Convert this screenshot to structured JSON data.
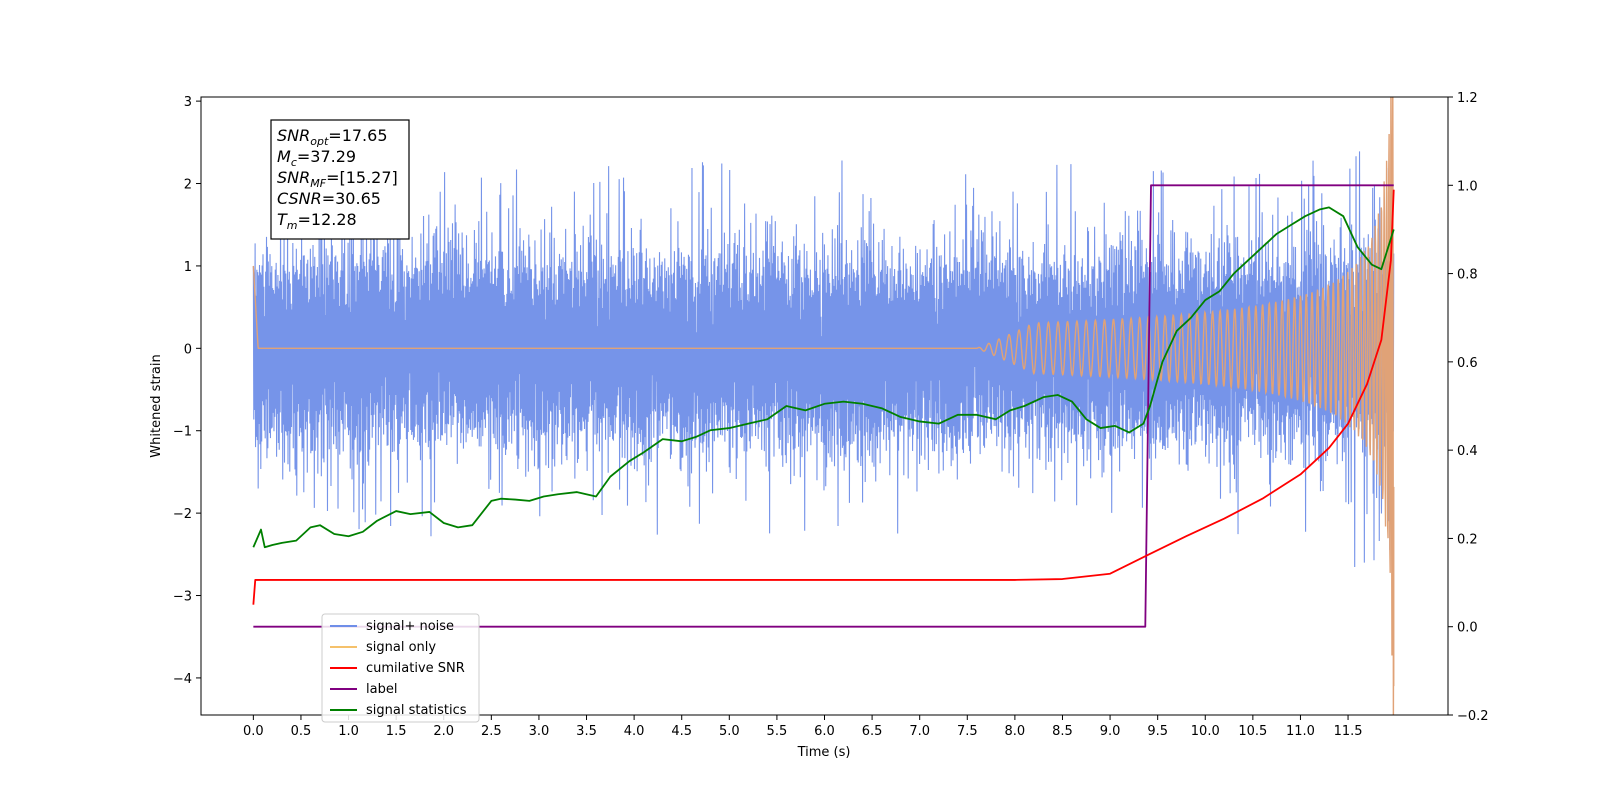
{
  "chart_data": {
    "type": "line",
    "xlabel": "Time (s)",
    "ylabel": "Whitened strain",
    "xlim": [
      -0.55,
      12.55
    ],
    "ylim": [
      -4.45,
      3.05
    ],
    "y2lim": [
      -0.2,
      1.2
    ],
    "x_ticks": [
      "0.0",
      "0.5",
      "1.0",
      "1.5",
      "2.0",
      "2.5",
      "3.0",
      "3.5",
      "4.0",
      "4.5",
      "5.0",
      "5.5",
      "6.0",
      "6.5",
      "7.0",
      "7.5",
      "8.0",
      "8.5",
      "9.0",
      "9.5",
      "10.0",
      "10.5",
      "11.0",
      "11.5"
    ],
    "y_ticks": [
      "3",
      "2",
      "1",
      "0",
      "−1",
      "−2",
      "−3",
      "−4"
    ],
    "y2_ticks": [
      "1.2",
      "1.0",
      "0.8",
      "0.6",
      "0.4",
      "0.2",
      "0.0",
      "−0.2"
    ],
    "annotation": [
      {
        "main": "SNR",
        "sub": "opt",
        "value": "=17.65"
      },
      {
        "main": "M",
        "sub": "c",
        "value": "=37.29"
      },
      {
        "main": "SNR",
        "sub": "MF",
        "value": "=[15.27]"
      },
      {
        "main": "CSNR",
        "sub": "",
        "value": "=30.65"
      },
      {
        "main": "T",
        "sub": "m",
        "value": "=12.28"
      }
    ],
    "legend": {
      "placement": "lower-left",
      "entries": [
        {
          "label": "signal+ noise",
          "color": "#6f8ee8"
        },
        {
          "label": "signal only",
          "color": "#f5c16b"
        },
        {
          "label": "cumilative SNR",
          "color": "#ff0000"
        },
        {
          "label": "label",
          "color": "#800080"
        },
        {
          "label": "signal statistics",
          "color": "#008000"
        }
      ]
    },
    "series": [
      {
        "name": "signal+ noise",
        "axis": "left",
        "style": "noise band, amplitude about ±1.3 with spikes to ±2.2, reaching 2.7 near the end",
        "t_start": 0.0,
        "t_end": 11.98,
        "band_amplitude": 1.3
      },
      {
        "name": "signal only",
        "axis": "left",
        "style": "chirp with growing amplitude, flat near 0 until about 8.0 s, final dip to −4.1",
        "t_start": 0.0,
        "t_end": 11.98,
        "end_value": -4.1
      },
      {
        "name": "cumilative SNR",
        "axis": "right",
        "x": [
          0.0,
          0.02,
          1.0,
          2.0,
          3.0,
          4.0,
          5.0,
          6.0,
          7.0,
          8.0,
          8.5,
          9.0,
          9.4,
          9.8,
          10.2,
          10.6,
          11.0,
          11.3,
          11.5,
          11.7,
          11.85,
          11.95,
          11.98
        ],
        "y": [
          0.05,
          0.106,
          0.106,
          0.106,
          0.106,
          0.106,
          0.106,
          0.106,
          0.106,
          0.106,
          0.108,
          0.12,
          0.163,
          0.205,
          0.245,
          0.29,
          0.345,
          0.405,
          0.46,
          0.55,
          0.65,
          0.83,
          0.99
        ]
      },
      {
        "name": "label",
        "axis": "right",
        "x": [
          0.0,
          9.37,
          9.43,
          11.98
        ],
        "y": [
          0.0,
          0.0,
          1.0,
          1.0
        ]
      },
      {
        "name": "signal statistics",
        "axis": "right",
        "x": [
          0.0,
          0.08,
          0.12,
          0.2,
          0.3,
          0.45,
          0.6,
          0.7,
          0.85,
          1.0,
          1.15,
          1.3,
          1.5,
          1.65,
          1.85,
          2.0,
          2.15,
          2.3,
          2.5,
          2.6,
          2.75,
          2.9,
          3.05,
          3.2,
          3.4,
          3.6,
          3.75,
          3.95,
          4.1,
          4.3,
          4.5,
          4.65,
          4.8,
          5.0,
          5.2,
          5.4,
          5.6,
          5.8,
          6.0,
          6.2,
          6.4,
          6.6,
          6.8,
          7.0,
          7.2,
          7.4,
          7.6,
          7.8,
          7.95,
          8.1,
          8.3,
          8.45,
          8.6,
          8.75,
          8.9,
          9.05,
          9.2,
          9.35,
          9.42,
          9.55,
          9.7,
          9.85,
          10.0,
          10.15,
          10.3,
          10.45,
          10.6,
          10.75,
          10.9,
          11.05,
          11.2,
          11.3,
          11.45,
          11.6,
          11.75,
          11.85,
          11.98
        ],
        "y": [
          0.18,
          0.22,
          0.18,
          0.185,
          0.19,
          0.195,
          0.225,
          0.23,
          0.21,
          0.205,
          0.215,
          0.24,
          0.262,
          0.255,
          0.26,
          0.235,
          0.225,
          0.23,
          0.285,
          0.29,
          0.288,
          0.285,
          0.295,
          0.3,
          0.305,
          0.295,
          0.34,
          0.375,
          0.395,
          0.425,
          0.42,
          0.43,
          0.445,
          0.45,
          0.46,
          0.47,
          0.5,
          0.49,
          0.505,
          0.51,
          0.505,
          0.495,
          0.475,
          0.465,
          0.46,
          0.48,
          0.48,
          0.47,
          0.49,
          0.5,
          0.52,
          0.525,
          0.51,
          0.47,
          0.45,
          0.455,
          0.44,
          0.46,
          0.5,
          0.6,
          0.67,
          0.7,
          0.74,
          0.76,
          0.8,
          0.83,
          0.86,
          0.89,
          0.91,
          0.93,
          0.945,
          0.95,
          0.93,
          0.86,
          0.82,
          0.81,
          0.9
        ]
      }
    ]
  }
}
